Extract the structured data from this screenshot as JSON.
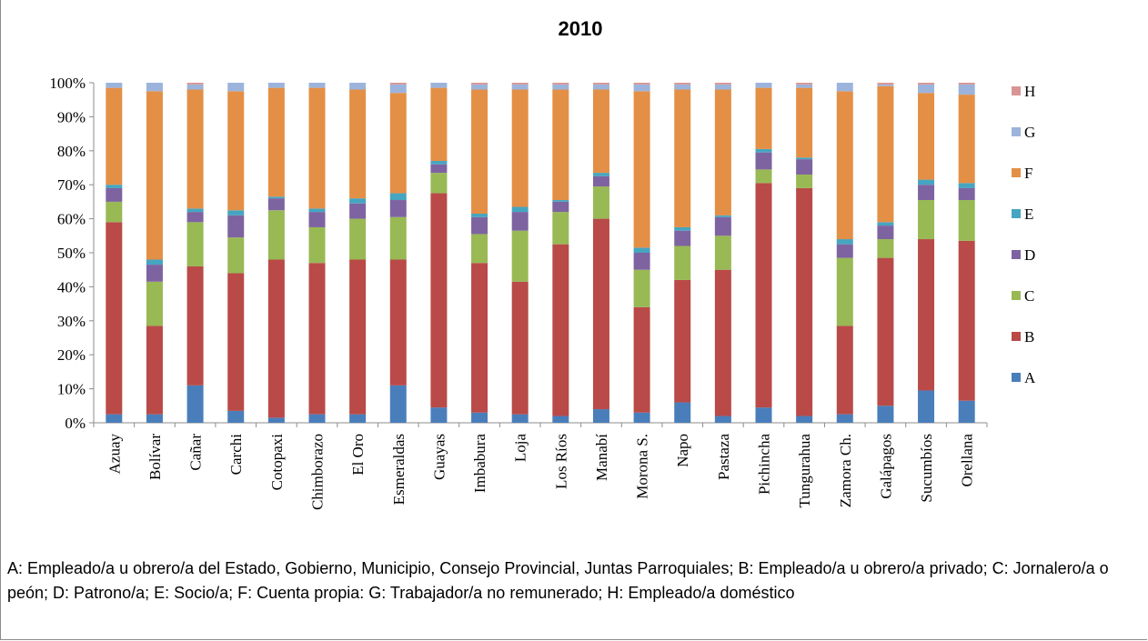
{
  "chart_data": {
    "type": "bar",
    "stacked": true,
    "percent": true,
    "title": "2010",
    "categories": [
      "Azuay",
      "Bolívar",
      "Cañar",
      "Carchi",
      "Cotopaxi",
      "Chimborazo",
      "El Oro",
      "Esmeraldas",
      "Guayas",
      "Imbabura",
      "Loja",
      "Los Ríos",
      "Manabí",
      "Morona S.",
      "Napo",
      "Pastaza",
      "Pichincha",
      "Tungurahua",
      "Zamora Ch.",
      "Galápagos",
      "Sucumbíos",
      "Orellana"
    ],
    "yticks": [
      "0%",
      "10%",
      "20%",
      "30%",
      "40%",
      "50%",
      "60%",
      "70%",
      "80%",
      "90%",
      "100%"
    ],
    "ylim": [
      0,
      100
    ],
    "legend_position": "right",
    "series": [
      {
        "name": "A",
        "color": "#4a7ebb",
        "values": [
          2.5,
          2.5,
          11,
          3.5,
          1.5,
          2.5,
          2.5,
          11,
          4.5,
          3,
          2.5,
          2,
          4,
          3,
          6,
          2,
          4.5,
          2,
          2.5,
          5,
          9.5,
          6.5
        ]
      },
      {
        "name": "B",
        "color": "#b94a48",
        "values": [
          56.5,
          26,
          35,
          40.5,
          46.5,
          44.5,
          45.5,
          37,
          63,
          44,
          39,
          50.5,
          56,
          31,
          36,
          43,
          66,
          67,
          26,
          43.5,
          44.5,
          47
        ]
      },
      {
        "name": "C",
        "color": "#98b954",
        "values": [
          6,
          13,
          13,
          10.5,
          14.5,
          10.5,
          12,
          12.5,
          6,
          8.5,
          15,
          9.5,
          9.5,
          11,
          10,
          10,
          4,
          4,
          20,
          5.5,
          11.5,
          12
        ]
      },
      {
        "name": "D",
        "color": "#7e63a1",
        "values": [
          4,
          5,
          3,
          6.5,
          3.5,
          4.5,
          4.5,
          5,
          2.5,
          5,
          5.5,
          3,
          3,
          5,
          4.5,
          5.5,
          5,
          4.5,
          4,
          4,
          4.5,
          3.5
        ]
      },
      {
        "name": "E",
        "color": "#46a5c0",
        "values": [
          1,
          1.5,
          1,
          1.5,
          0.5,
          1,
          1.5,
          2,
          1,
          1,
          1.5,
          0.5,
          1,
          1.5,
          1,
          0.5,
          1,
          0.5,
          1.5,
          1,
          1.5,
          1.5
        ]
      },
      {
        "name": "F",
        "color": "#e48f46",
        "values": [
          28.5,
          49.5,
          35,
          35,
          32,
          35.5,
          32,
          29.5,
          21.5,
          36.5,
          34.5,
          32.5,
          24.5,
          46,
          40.5,
          37,
          18,
          20.5,
          43.5,
          40,
          25.5,
          26
        ]
      },
      {
        "name": "G",
        "color": "#9cb4dc",
        "values": [
          1.5,
          2.5,
          1.5,
          2.5,
          1.5,
          1.5,
          2,
          2.5,
          1.5,
          1.5,
          1.5,
          1.5,
          1.5,
          2,
          1.5,
          1.5,
          1.5,
          1,
          2.5,
          0.5,
          2.5,
          3
        ]
      },
      {
        "name": "H",
        "color": "#d99594",
        "values": [
          0,
          0,
          0.5,
          0,
          0,
          0,
          0,
          0.5,
          0,
          0.5,
          0.5,
          0.5,
          0.5,
          0.5,
          0.5,
          0.5,
          0,
          0.5,
          0,
          0.5,
          0.5,
          0.5
        ]
      }
    ]
  },
  "caption": "A: Empleado/a u obrero/a del Estado, Gobierno, Municipio, Consejo Provincial, Juntas Parroquiales; B: Empleado/a u obrero/a privado; C: Jornalero/a o peón; D: Patrono/a; E: Socio/a; F: Cuenta propia: G: Trabajador/a no remunerado; H: Empleado/a doméstico"
}
